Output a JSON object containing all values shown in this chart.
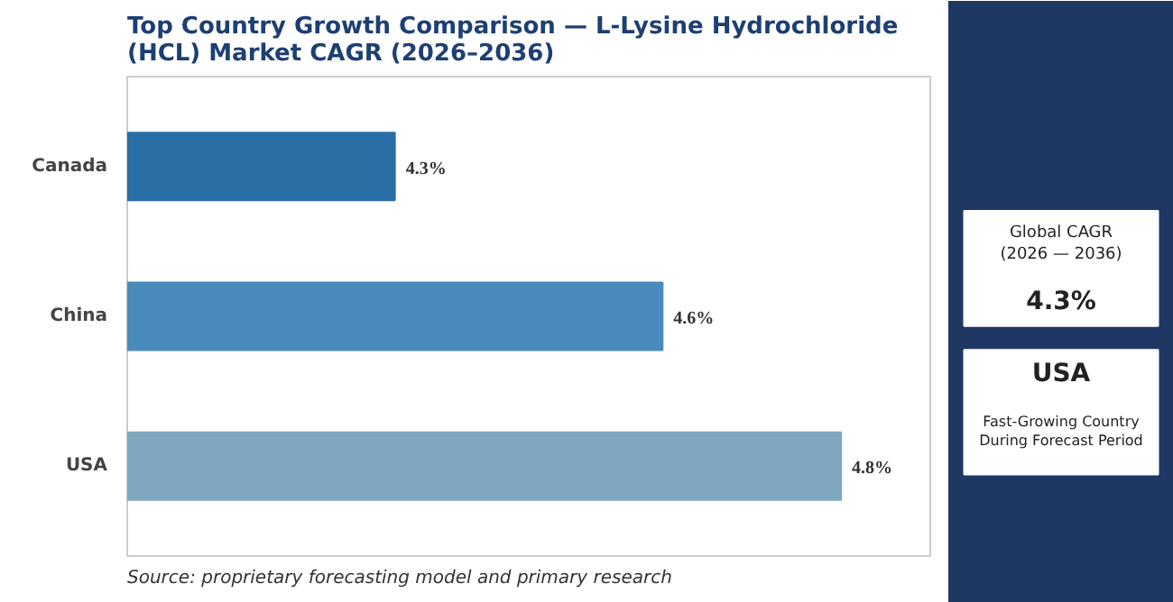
{
  "chart_data": [
    {
      "type": "bar",
      "orientation": "horizontal",
      "title": "Top Country Growth Comparison — L-Lysine Hydrochloride (HCL) Market CAGR (2026–2036)",
      "categories": [
        "Canada",
        "China",
        "USA"
      ],
      "values": [
        4.3,
        4.6,
        4.8
      ],
      "value_labels": [
        "4.3%",
        "4.6%",
        "4.8%"
      ],
      "colors": [
        "#2a6ea6",
        "#4a8bbd",
        "#7fa7bf"
      ],
      "xlim": [
        4.0,
        4.9
      ],
      "tick_labels": "y",
      "grid": false,
      "annotations": [
        "Source: proprietary forecasting model and primary research"
      ]
    },
    {
      "type": "other",
      "annotations": [
        "Global CAGR (2026 — 2036)",
        "4.3%",
        "USA",
        "Fast-Growing Country During Forecast Period"
      ]
    }
  ]
}
